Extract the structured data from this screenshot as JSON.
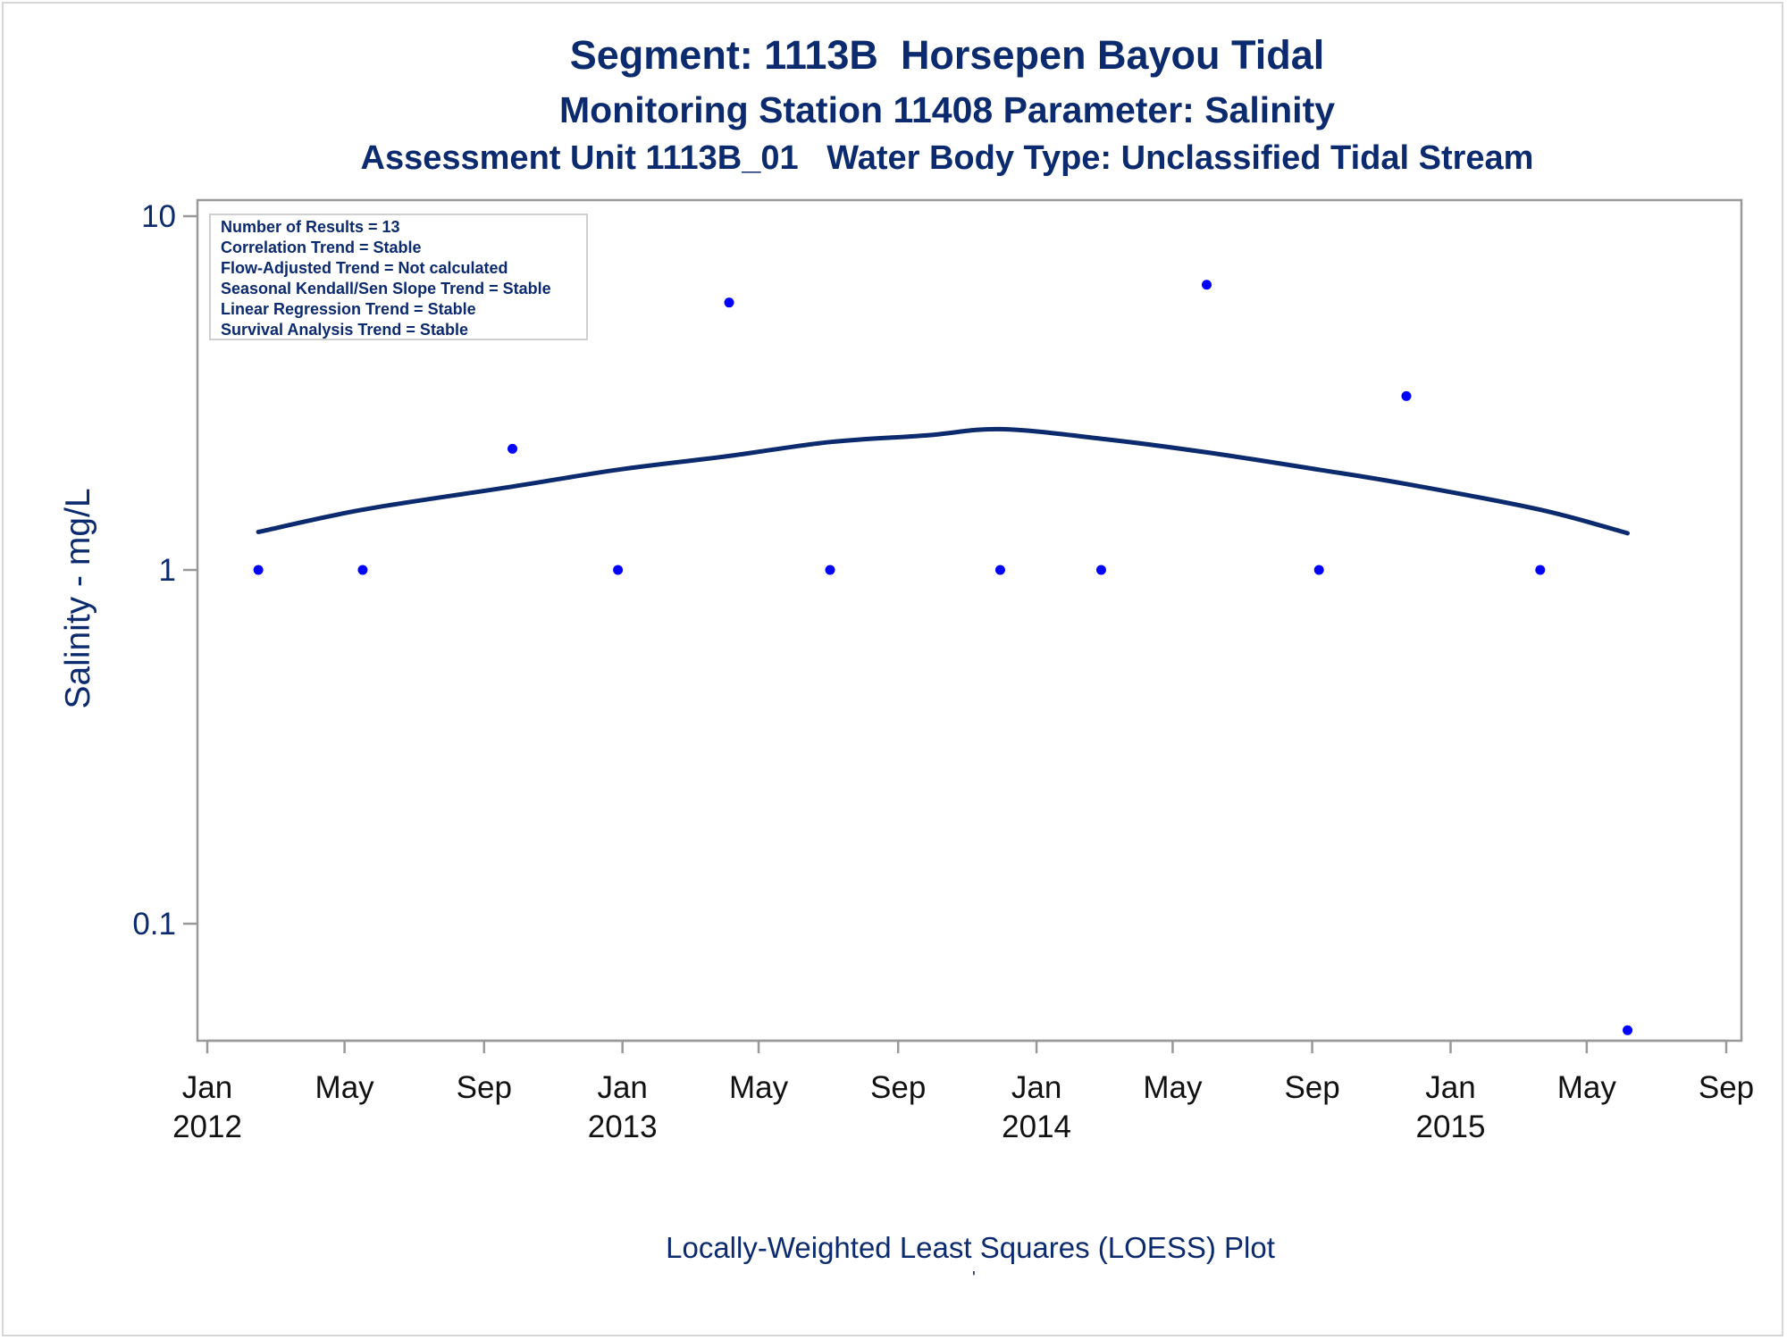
{
  "titles": {
    "line1": "Segment: 1113B  Horsepen Bayou Tidal",
    "line2": "Monitoring Station 11408 Parameter: Salinity",
    "line3": "Assessment Unit 1113B_01   Water Body Type: Unclassified Tidal Stream"
  },
  "footnote": "Locally-Weighted Least Squares (LOESS) Plot",
  "footnote_mark": "'",
  "colors": {
    "text": "#0c2a6e",
    "points": "#0000ff",
    "loess": "#0c2a6e",
    "frame": "#999999"
  },
  "chart_data": {
    "type": "scatter",
    "ylabel": "Salinity - mg/L",
    "yscale": "log",
    "ylim": [
      0.05,
      10
    ],
    "yticks": [
      {
        "value": 10,
        "label": "10"
      },
      {
        "value": 1,
        "label": "1"
      },
      {
        "value": 0.1,
        "label": "0.1"
      }
    ],
    "xlim": [
      "2012-01-01",
      "2015-09-01"
    ],
    "xticks": [
      {
        "date": "2012-01-01",
        "label": "Jan",
        "year": "2012"
      },
      {
        "date": "2012-05-01",
        "label": "May",
        "year": ""
      },
      {
        "date": "2012-09-01",
        "label": "Sep",
        "year": ""
      },
      {
        "date": "2013-01-01",
        "label": "Jan",
        "year": "2013"
      },
      {
        "date": "2013-05-01",
        "label": "May",
        "year": ""
      },
      {
        "date": "2013-09-01",
        "label": "Sep",
        "year": ""
      },
      {
        "date": "2014-01-01",
        "label": "Jan",
        "year": "2014"
      },
      {
        "date": "2014-05-01",
        "label": "May",
        "year": ""
      },
      {
        "date": "2014-09-01",
        "label": "Sep",
        "year": ""
      },
      {
        "date": "2015-01-01",
        "label": "Jan",
        "year": "2015"
      },
      {
        "date": "2015-05-01",
        "label": "May",
        "year": ""
      },
      {
        "date": "2015-09-01",
        "label": "Sep",
        "year": ""
      }
    ],
    "legend_placement": "top-left",
    "legend_lines": [
      "Number of Results = 13",
      "Correlation Trend = Stable",
      "Flow-Adjusted Trend = Not calculated",
      "Seasonal Kendall/Sen Slope Trend = Stable",
      "Linear Regression Trend = Stable",
      "Survival Analysis Trend = Stable"
    ],
    "points": [
      {
        "date": "2012-02-15",
        "value": 1
      },
      {
        "date": "2012-05-17",
        "value": 1
      },
      {
        "date": "2012-09-26",
        "value": 2.2
      },
      {
        "date": "2012-12-28",
        "value": 1
      },
      {
        "date": "2013-04-05",
        "value": 5.7
      },
      {
        "date": "2013-07-03",
        "value": 1
      },
      {
        "date": "2013-11-30",
        "value": 1
      },
      {
        "date": "2014-02-27",
        "value": 1
      },
      {
        "date": "2014-05-31",
        "value": 6.4
      },
      {
        "date": "2014-09-07",
        "value": 1
      },
      {
        "date": "2014-11-23",
        "value": 3.1
      },
      {
        "date": "2015-03-21",
        "value": 1
      },
      {
        "date": "2015-06-06",
        "value": 0.05
      }
    ],
    "loess_line": [
      {
        "date": "2012-02-15",
        "value": 1.28
      },
      {
        "date": "2012-05-17",
        "value": 1.48
      },
      {
        "date": "2012-09-26",
        "value": 1.72
      },
      {
        "date": "2012-12-28",
        "value": 1.92
      },
      {
        "date": "2013-04-05",
        "value": 2.1
      },
      {
        "date": "2013-07-03",
        "value": 2.3
      },
      {
        "date": "2013-09-26",
        "value": 2.4
      },
      {
        "date": "2013-11-30",
        "value": 2.5
      },
      {
        "date": "2014-02-27",
        "value": 2.35
      },
      {
        "date": "2014-05-31",
        "value": 2.15
      },
      {
        "date": "2014-09-07",
        "value": 1.92
      },
      {
        "date": "2014-11-23",
        "value": 1.75
      },
      {
        "date": "2015-03-21",
        "value": 1.48
      },
      {
        "date": "2015-06-06",
        "value": 1.27
      }
    ]
  }
}
